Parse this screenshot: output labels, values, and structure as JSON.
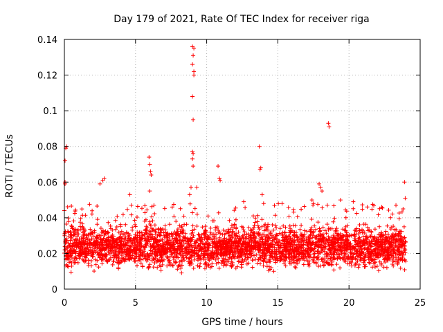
{
  "chart_data": {
    "type": "scatter",
    "title": "Day 179 of 2021, Rate Of TEC Index for receiver riga",
    "xlabel": "GPS time / hours",
    "ylabel": "ROTI / TECUs",
    "xlim": [
      0,
      25
    ],
    "ylim": [
      0,
      0.14
    ],
    "xticks": [
      0,
      5,
      10,
      15,
      20,
      25
    ],
    "xtick_labels": [
      "0",
      "5",
      "10",
      "15",
      "20",
      "25"
    ],
    "yticks": [
      0,
      0.02,
      0.04,
      0.06,
      0.08,
      0.1,
      0.12,
      0.14
    ],
    "ytick_labels": [
      "0",
      "0.02",
      "0.04",
      "0.06",
      "0.08",
      "0.1",
      "0.12",
      "0.14"
    ],
    "grid": true,
    "marker": "+",
    "color": "#ff0000",
    "series": [
      {
        "name": "ROTI",
        "x_range": [
          0,
          24
        ],
        "bulk_y_range": [
          0.008,
          0.035
        ],
        "outliers": [
          {
            "x": 0.05,
            "y": 0.06
          },
          {
            "x": 0.1,
            "y": 0.079
          },
          {
            "x": 0.15,
            "y": 0.08
          },
          {
            "x": 0.05,
            "y": 0.072
          },
          {
            "x": 0.05,
            "y": 0.059
          },
          {
            "x": 0.0,
            "y": 0.044
          },
          {
            "x": 2.5,
            "y": 0.059
          },
          {
            "x": 2.7,
            "y": 0.061
          },
          {
            "x": 2.8,
            "y": 0.062
          },
          {
            "x": 4.6,
            "y": 0.053
          },
          {
            "x": 4.7,
            "y": 0.047
          },
          {
            "x": 5.95,
            "y": 0.074
          },
          {
            "x": 6.0,
            "y": 0.07
          },
          {
            "x": 6.05,
            "y": 0.066
          },
          {
            "x": 6.1,
            "y": 0.064
          },
          {
            "x": 6.0,
            "y": 0.055
          },
          {
            "x": 8.8,
            "y": 0.053
          },
          {
            "x": 8.9,
            "y": 0.057
          },
          {
            "x": 9.0,
            "y": 0.077
          },
          {
            "x": 9.05,
            "y": 0.076
          },
          {
            "x": 9.0,
            "y": 0.073
          },
          {
            "x": 9.05,
            "y": 0.069
          },
          {
            "x": 9.05,
            "y": 0.095
          },
          {
            "x": 9.0,
            "y": 0.108
          },
          {
            "x": 9.1,
            "y": 0.12
          },
          {
            "x": 9.1,
            "y": 0.122
          },
          {
            "x": 9.0,
            "y": 0.126
          },
          {
            "x": 9.05,
            "y": 0.131
          },
          {
            "x": 9.1,
            "y": 0.135
          },
          {
            "x": 9.0,
            "y": 0.136
          },
          {
            "x": 9.3,
            "y": 0.057
          },
          {
            "x": 10.8,
            "y": 0.069
          },
          {
            "x": 10.9,
            "y": 0.062
          },
          {
            "x": 10.95,
            "y": 0.061
          },
          {
            "x": 12.6,
            "y": 0.049
          },
          {
            "x": 13.7,
            "y": 0.08
          },
          {
            "x": 13.75,
            "y": 0.067
          },
          {
            "x": 13.8,
            "y": 0.068
          },
          {
            "x": 13.9,
            "y": 0.053
          },
          {
            "x": 14.0,
            "y": 0.048
          },
          {
            "x": 15.3,
            "y": 0.048
          },
          {
            "x": 17.4,
            "y": 0.05
          },
          {
            "x": 17.5,
            "y": 0.048
          },
          {
            "x": 17.9,
            "y": 0.059
          },
          {
            "x": 18.0,
            "y": 0.057
          },
          {
            "x": 18.1,
            "y": 0.055
          },
          {
            "x": 18.55,
            "y": 0.093
          },
          {
            "x": 18.6,
            "y": 0.091
          },
          {
            "x": 19.4,
            "y": 0.05
          },
          {
            "x": 20.3,
            "y": 0.049
          },
          {
            "x": 22.3,
            "y": 0.046
          },
          {
            "x": 23.3,
            "y": 0.047
          },
          {
            "x": 23.9,
            "y": 0.06
          },
          {
            "x": 23.95,
            "y": 0.051
          },
          {
            "x": 23.8,
            "y": 0.045
          }
        ]
      }
    ]
  }
}
